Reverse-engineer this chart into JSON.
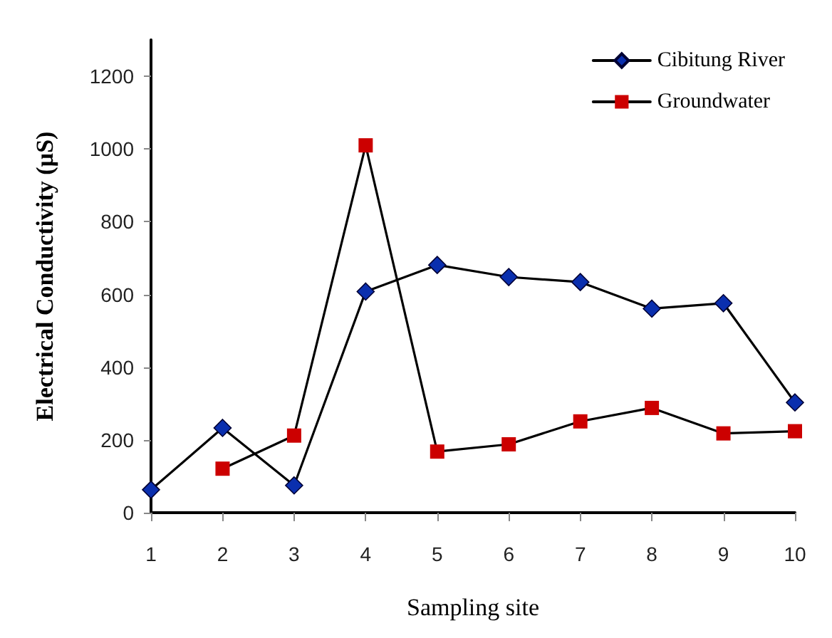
{
  "chart_data": {
    "type": "line",
    "xlabel": "Sampling site",
    "ylabel": "Electrical Conductivity (µS)",
    "categories": [
      "1",
      "2",
      "3",
      "4",
      "5",
      "6",
      "7",
      "8",
      "9",
      "10"
    ],
    "series": [
      {
        "name": "Cibitung River",
        "color": "#0a2fae",
        "marker": "diamond",
        "values": [
          63,
          233,
          75,
          608,
          681,
          648,
          634,
          561,
          576,
          303
        ]
      },
      {
        "name": "Groundwater",
        "color": "#cc0000",
        "marker": "square",
        "values": [
          null,
          121,
          212,
          1010,
          168,
          188,
          251,
          288,
          218,
          224
        ]
      }
    ],
    "ylim": [
      0,
      1300
    ],
    "yticks": [
      0,
      200,
      400,
      600,
      800,
      1000,
      1200
    ],
    "grid": false,
    "legend": "top right",
    "line_style": "solid"
  }
}
